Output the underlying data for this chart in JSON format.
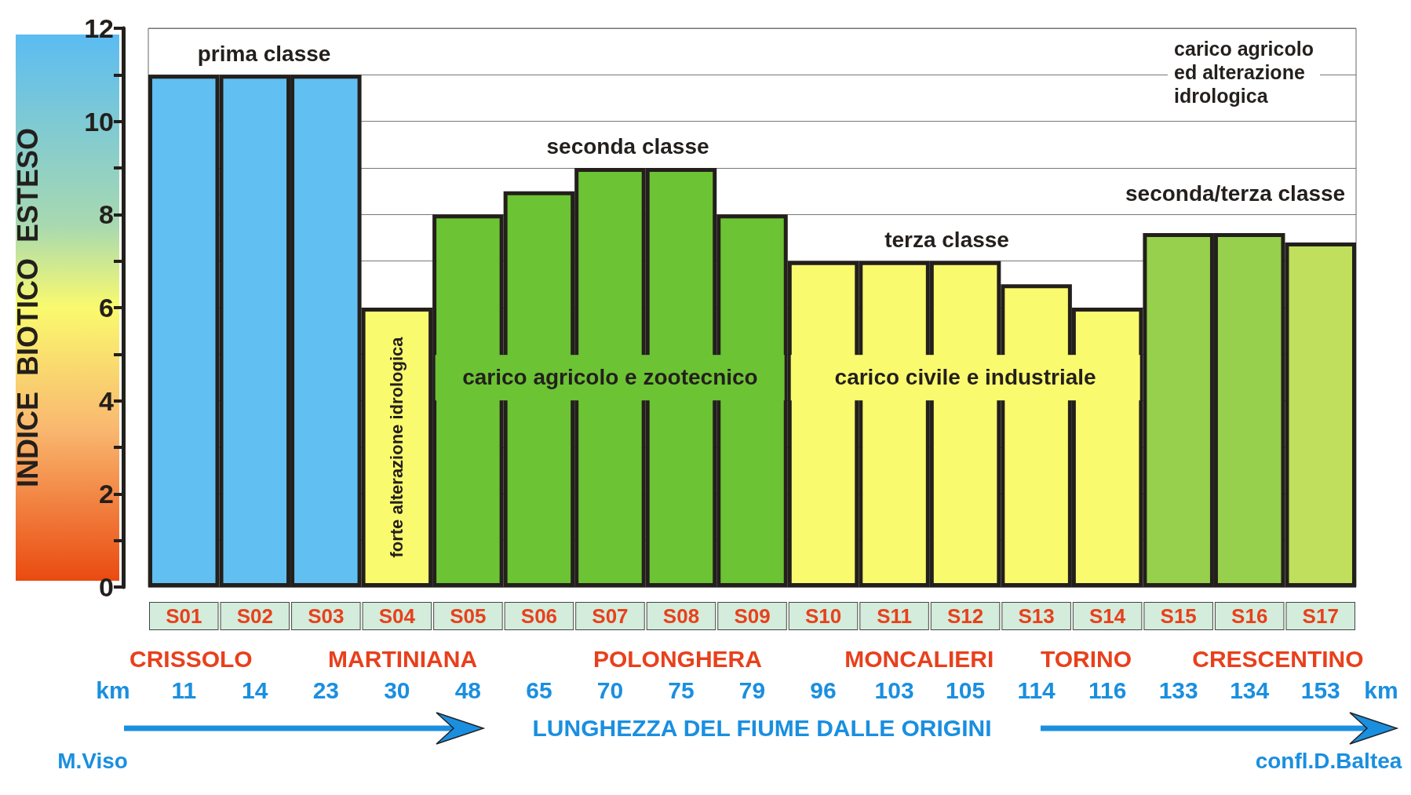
{
  "chart_data": {
    "type": "bar",
    "ylabel": "INDICE  BIOTICO  ESTESO",
    "xlabel": "LUNGHEZZA DEL FIUME DALLE ORIGINI",
    "categories": [
      "S01",
      "S02",
      "S03",
      "S04",
      "S05",
      "S06",
      "S07",
      "S08",
      "S09",
      "S10",
      "S11",
      "S12",
      "S13",
      "S14",
      "S15",
      "S16",
      "S17"
    ],
    "values": [
      11,
      11,
      11,
      6,
      8,
      8.5,
      9,
      9,
      8,
      7,
      7,
      7,
      6.5,
      6,
      7.6,
      7.6,
      7.4
    ],
    "colors": [
      "#62bff2",
      "#62bff2",
      "#62bff2",
      "#fafa6e",
      "#6cc334",
      "#6cc334",
      "#6cc334",
      "#6cc334",
      "#6cc334",
      "#fafa6e",
      "#fafa6e",
      "#fafa6e",
      "#fafa6e",
      "#fafa6e",
      "#96d04c",
      "#96d04c",
      "#c0df5c"
    ],
    "ylim": [
      0,
      12
    ],
    "yticks": [
      0,
      {
        "value": 1,
        "label": null
      },
      2,
      {
        "value": 3,
        "label": null
      },
      4,
      {
        "value": 5,
        "label": null
      },
      6,
      {
        "value": 7,
        "label": null
      },
      8,
      {
        "value": 9,
        "label": null
      },
      10,
      {
        "value": 11,
        "label": null
      },
      12
    ],
    "grid": true,
    "annotations": [
      "prima classe",
      "seconda classe",
      "terza classe",
      "seconda/terza classe",
      "carico agricolo\ned alterazione\nidrologica",
      "forte alterazione idrologica",
      "carico agricolo e zootecnico",
      "carico civile e industriale",
      "CRISSOLO",
      "MARTINIANA",
      "POLONGHERA",
      "MONCALIERI",
      "TORINO",
      "CRESCENTINO",
      "km",
      "11",
      "14",
      "23",
      "30",
      "48",
      "65",
      "70",
      "75",
      "79",
      "96",
      "103",
      "105",
      "114",
      "116",
      "133",
      "134",
      "153",
      "km",
      "M.Viso",
      "confl.D.Baltea"
    ]
  }
}
